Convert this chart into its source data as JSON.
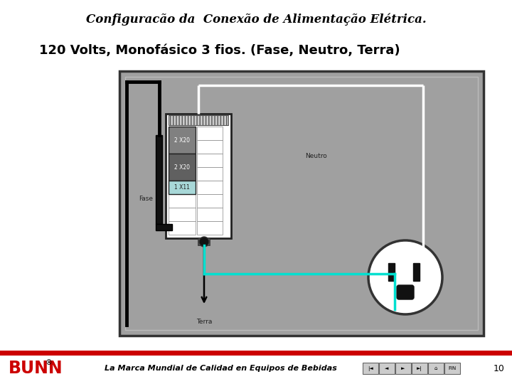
{
  "title": "Configuracão da  Conexão de Alimentação Elétrica.",
  "subtitle": "120 Volts, Monofásico 3 fios. (Fase, Neutro, Terra)",
  "bg_color": "#a0a0a0",
  "outer_bg": "#ffffff",
  "breaker1_color": "#808080",
  "breaker2_color": "#606060",
  "breaker3_color": "#a8d8d8",
  "neutral_wire_color": "#ffffff",
  "ground_wire_color": "#00e0d0",
  "black_wire_color": "#000000",
  "label_fase": "Fase",
  "label_neutro": "Neutro",
  "label_terra": "Terra",
  "label_b1": "2 X20",
  "label_b2": "2 X20",
  "label_b3": "1 X11",
  "footer_text": "La Marca Mundial de Calidad en Equipos de Bebidas",
  "bunn_color": "#cc0000",
  "page_num": "10",
  "nav_buttons": [
    "|◄",
    "◄",
    "►",
    "►|",
    "⌂",
    "FIN"
  ]
}
